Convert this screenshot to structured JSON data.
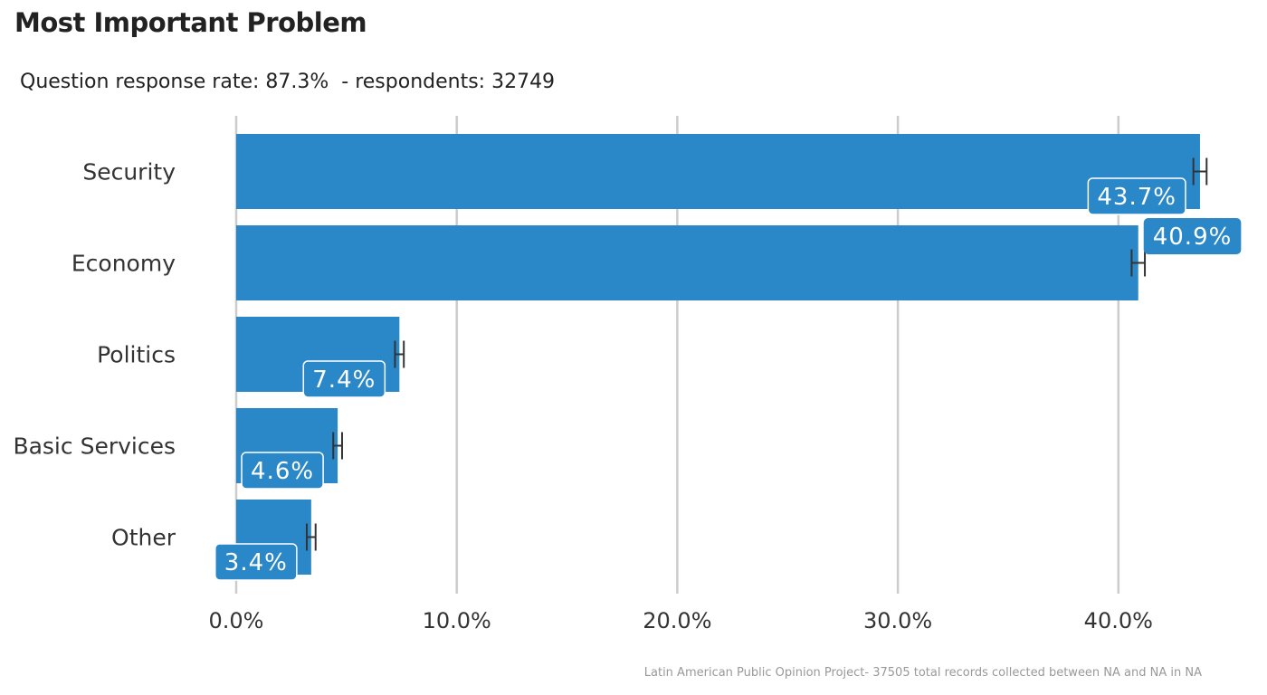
{
  "chart_data": {
    "type": "bar",
    "orientation": "horizontal",
    "title": "Most Important Problem",
    "subtitle": "Question response rate: 87.3%  - respondents: 32749",
    "caption": "Latin American Public Opinion Project- 37505 total records collected between NA and NA in  NA",
    "categories": [
      "Security",
      "Economy",
      "Politics",
      "Basic Services",
      "Other"
    ],
    "values": [
      43.7,
      40.9,
      7.4,
      4.6,
      3.4
    ],
    "value_labels": [
      "43.7%",
      "40.9%",
      "7.4%",
      "4.6%",
      "3.4%"
    ],
    "error_bars": [
      [
        43.4,
        44.0
      ],
      [
        40.6,
        41.2
      ],
      [
        7.2,
        7.6
      ],
      [
        4.4,
        4.8
      ],
      [
        3.2,
        3.6
      ]
    ],
    "x_ticks": [
      0,
      10,
      20,
      30,
      40
    ],
    "x_tick_labels": [
      "0.0%",
      "10.0%",
      "20.0%",
      "30.0%",
      "40.0%"
    ],
    "xlim": [
      0,
      45
    ],
    "grid": "vertical major",
    "bar_color": "#2b88c8",
    "xlabel": "",
    "ylabel": ""
  }
}
